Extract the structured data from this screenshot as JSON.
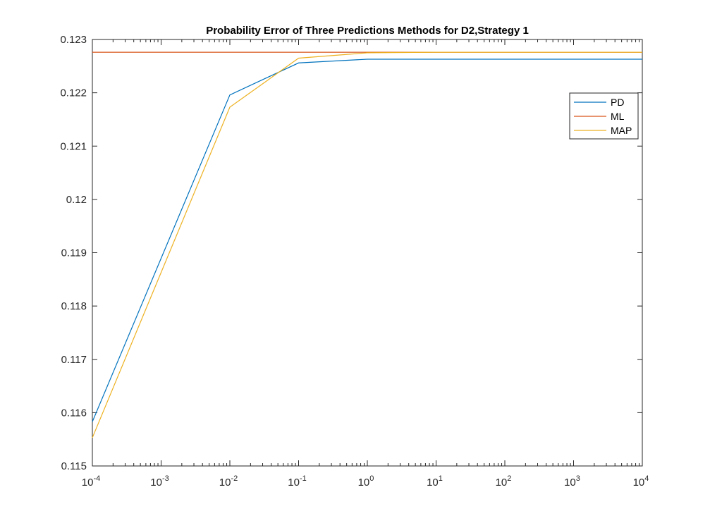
{
  "chart_data": {
    "type": "line",
    "title": "Probability Error of Three Predictions Methods for D2,Strategy 1",
    "xlabel": "",
    "ylabel": "",
    "x_scale": "log",
    "xlim": [
      0.0001,
      10000
    ],
    "ylim": [
      0.115,
      0.123
    ],
    "grid": false,
    "legend_position": "top-right",
    "x_ticks": [
      {
        "value": 0.0001,
        "base": "10",
        "exp": "-4"
      },
      {
        "value": 0.001,
        "base": "10",
        "exp": "-3"
      },
      {
        "value": 0.01,
        "base": "10",
        "exp": "-2"
      },
      {
        "value": 0.1,
        "base": "10",
        "exp": "-1"
      },
      {
        "value": 1,
        "base": "10",
        "exp": "0"
      },
      {
        "value": 10,
        "base": "10",
        "exp": "1"
      },
      {
        "value": 100,
        "base": "10",
        "exp": "2"
      },
      {
        "value": 1000,
        "base": "10",
        "exp": "3"
      },
      {
        "value": 10000,
        "base": "10",
        "exp": "4"
      }
    ],
    "y_ticks": [
      {
        "value": 0.115,
        "label": "0.115"
      },
      {
        "value": 0.116,
        "label": "0.116"
      },
      {
        "value": 0.117,
        "label": "0.117"
      },
      {
        "value": 0.118,
        "label": "0.118"
      },
      {
        "value": 0.119,
        "label": "0.119"
      },
      {
        "value": 0.12,
        "label": "0.12"
      },
      {
        "value": 0.121,
        "label": "0.121"
      },
      {
        "value": 0.122,
        "label": "0.122"
      },
      {
        "value": 0.123,
        "label": "0.123"
      }
    ],
    "x": [
      0.0001,
      0.01,
      0.1,
      1,
      10,
      100,
      1000,
      10000
    ],
    "series": [
      {
        "name": "PD",
        "color": "#0072BD",
        "values": [
          0.11583,
          0.12196,
          0.12256,
          0.12263,
          0.12263,
          0.12263,
          0.12263,
          0.12263
        ]
      },
      {
        "name": "ML",
        "color": "#D95319",
        "values": [
          0.12276,
          0.12276,
          0.12276,
          0.12276,
          0.12276,
          0.12276,
          0.12276,
          0.12276
        ]
      },
      {
        "name": "MAP",
        "color": "#EDB120",
        "values": [
          0.11553,
          0.12173,
          0.12265,
          0.12275,
          0.12276,
          0.12276,
          0.12276,
          0.12276
        ]
      }
    ]
  }
}
